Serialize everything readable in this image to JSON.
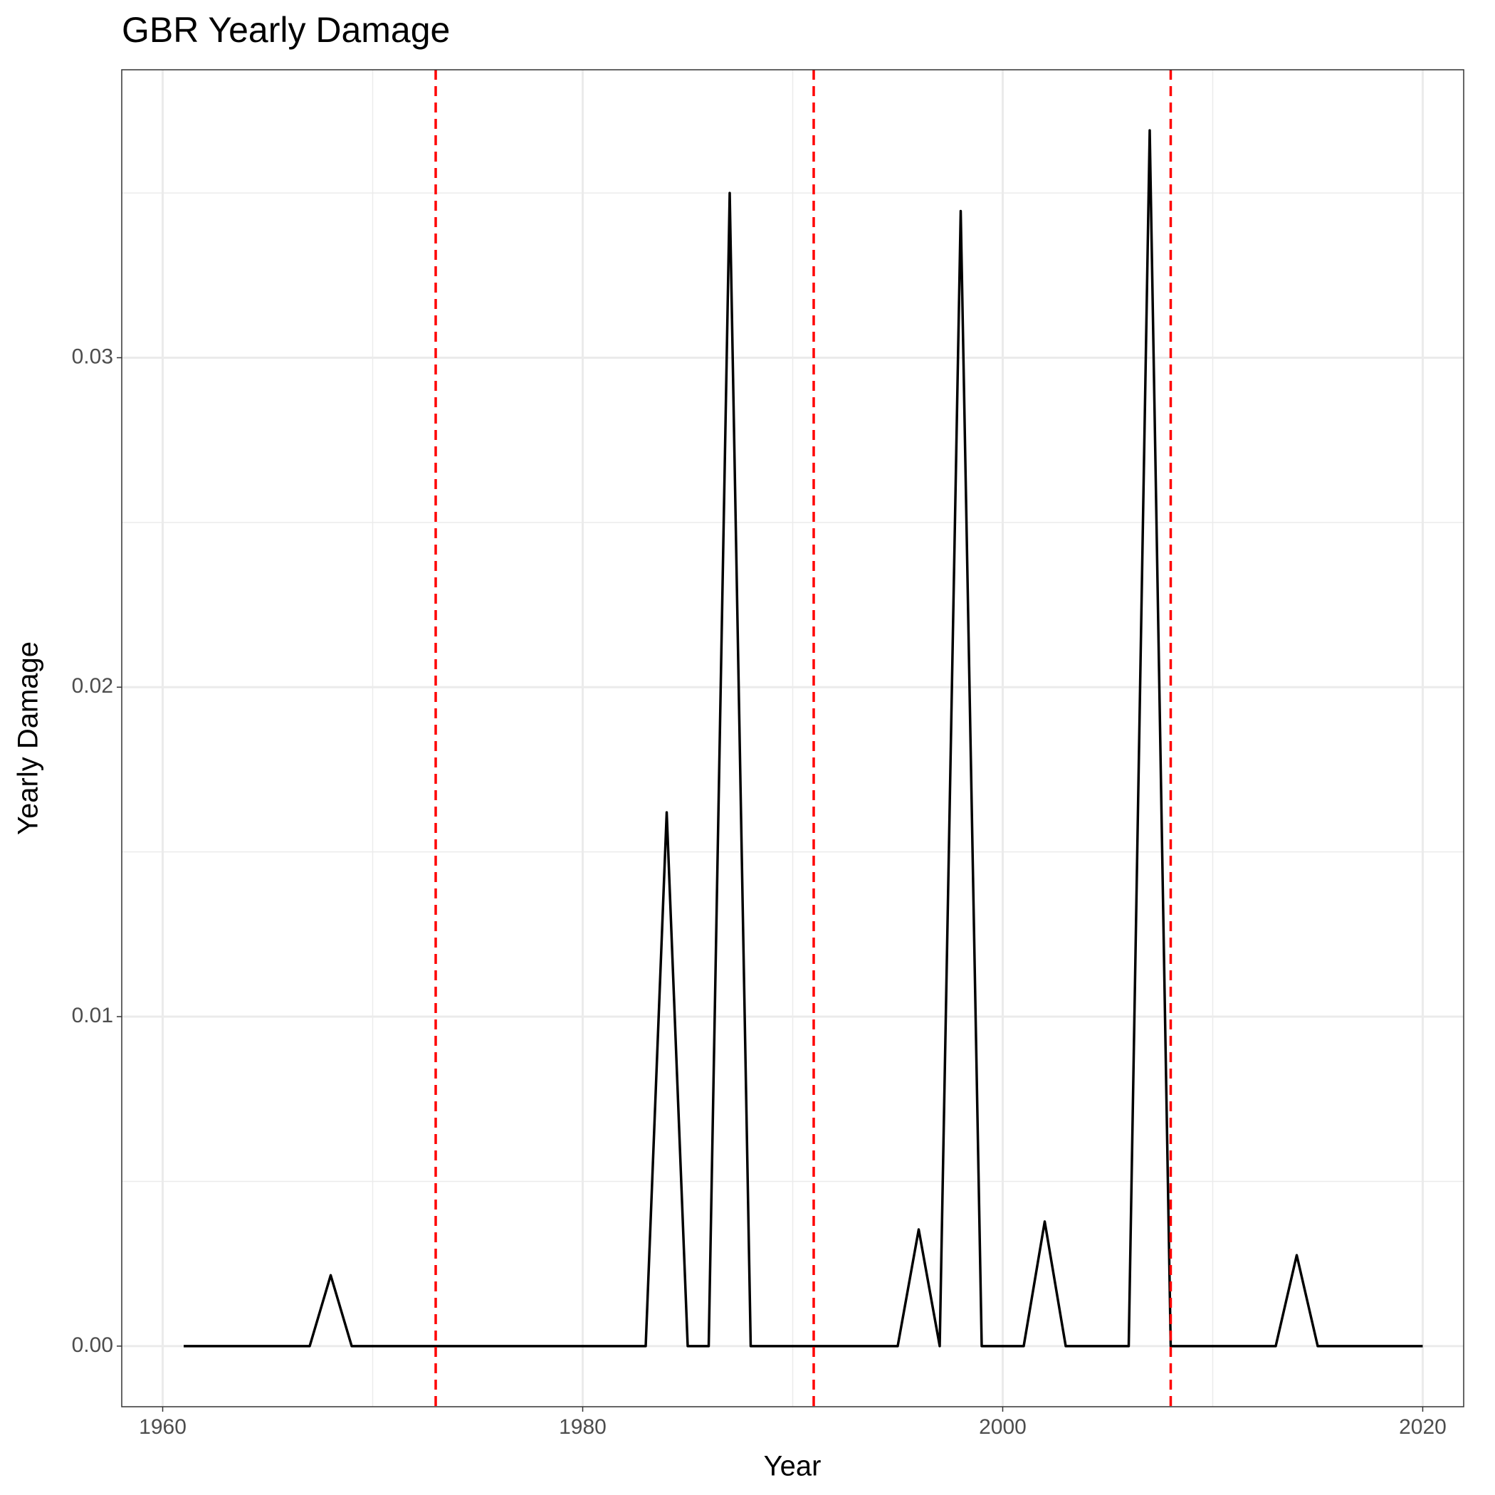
{
  "chart_data": {
    "type": "line",
    "title": "GBR Yearly Damage",
    "x_label": "Year",
    "y_label": "Yearly Damage",
    "x": [
      1961,
      1962,
      1963,
      1964,
      1965,
      1966,
      1967,
      1968,
      1969,
      1970,
      1971,
      1972,
      1973,
      1974,
      1975,
      1976,
      1977,
      1978,
      1979,
      1980,
      1981,
      1982,
      1983,
      1984,
      1985,
      1986,
      1987,
      1988,
      1989,
      1990,
      1991,
      1992,
      1993,
      1994,
      1995,
      1996,
      1997,
      1998,
      1999,
      2000,
      2001,
      2002,
      2003,
      2004,
      2005,
      2006,
      2007,
      2008,
      2009,
      2010,
      2011,
      2012,
      2013,
      2014,
      2015,
      2016,
      2017,
      2018,
      2019,
      2020
    ],
    "series": [
      {
        "color": "#000000",
        "values": [
          0,
          0,
          0,
          0,
          0,
          0,
          0,
          0.00215,
          0,
          0,
          0,
          0,
          0,
          0,
          0,
          0,
          0,
          0,
          0,
          0,
          0,
          0,
          0,
          0.0162,
          0,
          0,
          0.035,
          0,
          0,
          0,
          0,
          0,
          0,
          0,
          0,
          0.00354,
          0,
          0.03445,
          0,
          0,
          0,
          0.00378,
          0,
          0,
          0,
          0,
          0.0369,
          0,
          0,
          0,
          0,
          0,
          0,
          0.00276,
          0,
          0,
          0,
          0,
          0,
          0
        ]
      }
    ],
    "vlines": {
      "x": [
        1973,
        1991,
        2008
      ],
      "color": "#ff0000",
      "dashed": true
    },
    "xlim": [
      1958.05,
      2021.95
    ],
    "xticks": [
      1960,
      1980,
      2000,
      2020
    ],
    "x_minor_grid": [
      1970,
      1990,
      2010
    ],
    "ylim": [
      -0.00184,
      0.03874
    ],
    "yticks": [
      {
        "value": 0,
        "label": "0.00"
      },
      0.01,
      0.02,
      0.03
    ],
    "y_minor_grid": [
      0.005,
      0.015,
      0.025,
      0.035
    ],
    "grid": true
  }
}
